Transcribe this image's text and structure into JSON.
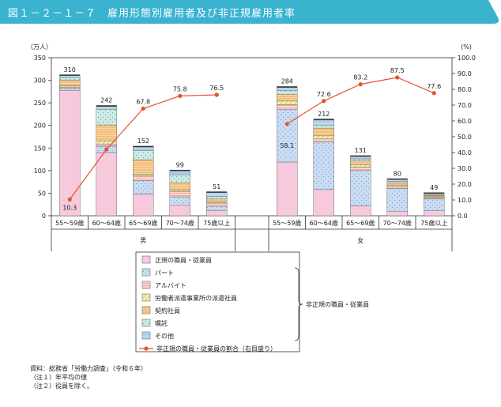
{
  "title": "図１－２－１－７　雇用形態別雇用者及び非正規雇用者率",
  "chart_data": {
    "type": "bar",
    "stacked": true,
    "ylabel_left": "（万人）",
    "ylabel_right": "(%)",
    "ylim_left": [
      0,
      350
    ],
    "ylim_right": [
      0,
      100
    ],
    "yticks_left": [
      "0",
      "50",
      "100",
      "150",
      "200",
      "250",
      "300",
      "350"
    ],
    "yticks_right": [
      "0.0",
      "10.0",
      "20.0",
      "30.0",
      "40.0",
      "50.0",
      "60.0",
      "70.0",
      "80.0",
      "90.0",
      "100.0"
    ],
    "groups": [
      {
        "name": "男",
        "categories": [
          "55～59歳",
          "60～64歳",
          "65～69歳",
          "70～74歳",
          "75歳以上"
        ],
        "totals": [
          310,
          242,
          152,
          99,
          51
        ],
        "total_labels": [
          "310",
          "242",
          "152",
          "99",
          "51"
        ],
        "segments": {
          "regular": [
            278,
            140,
            48,
            24,
            12
          ],
          "part": [
            4,
            14,
            30,
            18,
            9
          ],
          "arbeit": [
            3,
            5,
            10,
            12,
            7
          ],
          "dispatched": [
            3,
            7,
            4,
            3,
            2
          ],
          "contract": [
            12,
            35,
            32,
            16,
            7
          ],
          "shokutaku": [
            6,
            35,
            20,
            18,
            6
          ],
          "other": [
            4,
            6,
            8,
            8,
            8
          ]
        },
        "rate": [
          10.3,
          42.0,
          67.8,
          75.8,
          76.5
        ],
        "rate_labels": [
          "10.3",
          "",
          "67.8",
          "75.8",
          "76.5"
        ]
      },
      {
        "name": "女",
        "categories": [
          "55～59歳",
          "60～64歳",
          "65～69歳",
          "70～74歳",
          "75歳以上"
        ],
        "totals": [
          284,
          212,
          131,
          80,
          49
        ],
        "total_labels": [
          "284",
          "212",
          "131",
          "80",
          "49"
        ],
        "segments": {
          "regular": [
            119,
            58,
            22,
            10,
            11
          ],
          "part": [
            117,
            105,
            78,
            50,
            26
          ],
          "arbeit": [
            10,
            7,
            8,
            4,
            3
          ],
          "dispatched": [
            8,
            7,
            5,
            3,
            2
          ],
          "contract": [
            15,
            17,
            8,
            6,
            3
          ],
          "shokutaku": [
            8,
            7,
            5,
            3,
            2
          ],
          "other": [
            7,
            11,
            5,
            4,
            2
          ]
        },
        "rate": [
          58.1,
          72.6,
          83.2,
          87.5,
          77.6
        ],
        "rate_labels": [
          "58.1",
          "72.6",
          "83.2",
          "87.5",
          "77.6"
        ]
      }
    ],
    "legend": {
      "placement": "bottom",
      "items": [
        {
          "key": "regular",
          "label": "正規の職員・従業員"
        },
        {
          "key": "part",
          "label": "パート"
        },
        {
          "key": "arbeit",
          "label": "アルバイト"
        },
        {
          "key": "dispatched",
          "label": "労働者派遣事業所の派遣社員"
        },
        {
          "key": "contract",
          "label": "契約社員"
        },
        {
          "key": "shokutaku",
          "label": "嘱託"
        },
        {
          "key": "other",
          "label": "その他"
        }
      ],
      "line_label": "非正規の職員・従業員の割合（右目盛り）",
      "brace_label": "非正規の職員・従業員"
    },
    "colors": {
      "regular": "#f6c9dd",
      "part": "#c9dcf2",
      "arbeit": "#fbd9cf",
      "dispatched": "#f7efb0",
      "contract": "#fbd7a6",
      "shokutaku": "#cdebe3",
      "other": "#bfd8f2",
      "line": "#e8502f",
      "title_bg": "#3ab3cf"
    }
  },
  "notes": [
    "資料：総務省「労働力調査」（令和６年）",
    "（注１）年平均の値",
    "（注２）役員を除く。"
  ]
}
